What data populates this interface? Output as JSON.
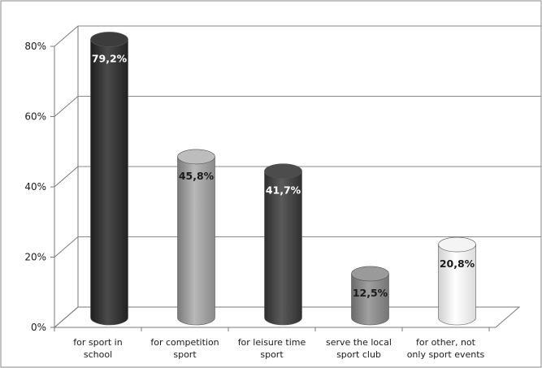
{
  "chart_data": {
    "type": "bar",
    "title": "",
    "xlabel": "",
    "ylabel": "",
    "categories": [
      [
        "for sport in",
        "school"
      ],
      [
        "for competition",
        "sport"
      ],
      [
        "for leisure time",
        "sport"
      ],
      [
        "serve the local",
        "sport club"
      ],
      [
        "for other, not",
        "only sport events"
      ]
    ],
    "values": [
      79.2,
      45.8,
      41.7,
      12.5,
      20.8
    ],
    "data_labels": [
      "79,2%",
      "45,8%",
      "41,7%",
      "12,5%",
      "20,8%"
    ],
    "bar_colors": [
      "#3a3a3a",
      "#a8a8a8",
      "#4a4a4a",
      "#8e8e8e",
      "#f2f2f2"
    ],
    "label_colors": [
      "#ffffff",
      "#1a1a1a",
      "#ffffff",
      "#1a1a1a",
      "#1a1a1a"
    ],
    "ylim": [
      0,
      80
    ],
    "yticks": [
      0,
      20,
      40,
      60,
      80
    ],
    "ytick_labels": [
      "0%",
      "20%",
      "40%",
      "60%",
      "80%"
    ],
    "grid": true,
    "legend": "none",
    "style": "3d-cylinder"
  }
}
